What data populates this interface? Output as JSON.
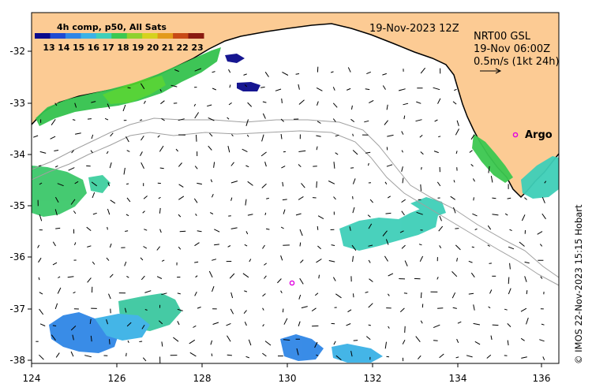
{
  "colorbar": {
    "title": "4h comp, p50, All Sats",
    "labels": [
      "13",
      "14",
      "15",
      "16",
      "17",
      "18",
      "19",
      "20",
      "21",
      "22",
      "23"
    ],
    "colors": [
      "#0a0a8c",
      "#1e4bd2",
      "#2f86e6",
      "#3bb2e6",
      "#3fcfb8",
      "#3cc850",
      "#8fd12e",
      "#d6d21e",
      "#e39a1a",
      "#c84a16",
      "#8a1a10"
    ]
  },
  "header": {
    "date": "19-Nov-2023 12Z",
    "product": "NRT00 GSL",
    "vector_time": "19-Nov 06:00Z",
    "scale_text": "0.5m/s (1kt 24h)"
  },
  "argo": {
    "label": "Argo"
  },
  "axes": {
    "x_ticks": [
      "124",
      "126",
      "128",
      "130",
      "132",
      "134",
      "136"
    ],
    "y_ticks": [
      "-32",
      "-33",
      "-34",
      "-35",
      "-36",
      "-37",
      "-38"
    ]
  },
  "credit": "© IMOS 22-Nov-2023 15:15 Hobart",
  "colors": {
    "land": "#fccb94",
    "coast": "#000000",
    "bathymetry": "#a0a0a0",
    "argo": "#e000e0"
  }
}
